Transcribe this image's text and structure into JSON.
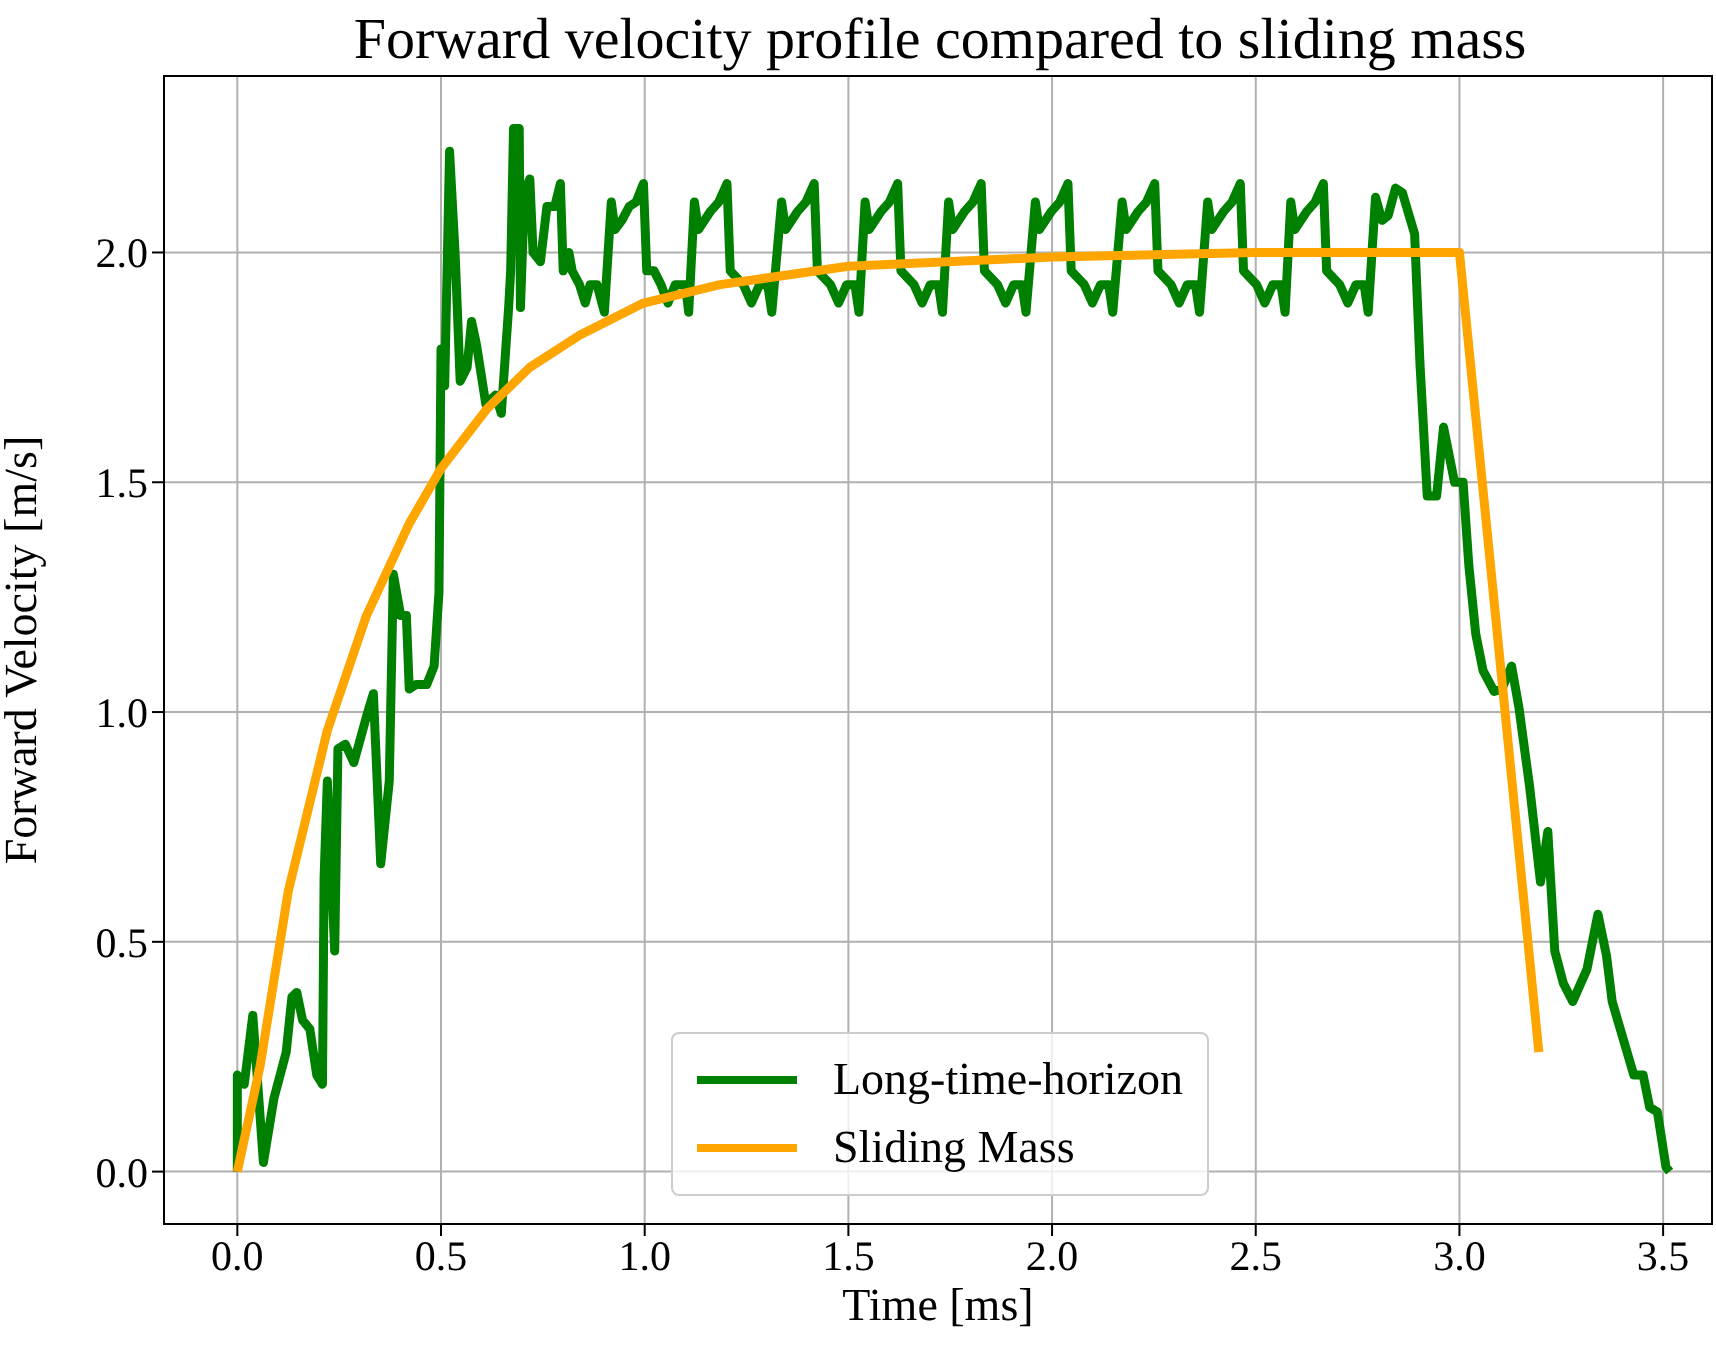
{
  "chart_data": {
    "type": "line",
    "title": "Forward velocity profile compared to sliding mass",
    "xlabel": "Time [ms]",
    "ylabel": "Forward Velocity [m/s]",
    "xlim": [
      -0.18,
      3.62
    ],
    "xticks": [
      {
        "value": 0,
        "label": "0.0"
      },
      {
        "value": 0.5,
        "label": "0.5"
      },
      {
        "value": 1,
        "label": "1.0"
      },
      {
        "value": 1.5,
        "label": "1.5"
      },
      {
        "value": 2,
        "label": "2.0"
      },
      {
        "value": 2.5,
        "label": "2.5"
      },
      {
        "value": 3,
        "label": "3.0"
      },
      {
        "value": 3.5,
        "label": "3.5"
      }
    ],
    "ylim": [
      -0.114,
      2.384
    ],
    "yticks": [
      {
        "value": 0,
        "label": "0.0"
      },
      {
        "value": 0.5,
        "label": "0.5"
      },
      {
        "value": 1,
        "label": "1.0"
      },
      {
        "value": 1.5,
        "label": "1.5"
      },
      {
        "value": 2,
        "label": "2.0"
      }
    ],
    "grid": true,
    "legend": "bottom",
    "marker": "none",
    "line_style": "solid",
    "series": [
      {
        "name": "Long-time-horizon",
        "color": "#008000",
        "x": [
          0,
          0,
          0.017,
          0.038,
          0.064,
          0.09,
          0.12,
          0.134,
          0.146,
          0.16,
          0.178,
          0.195,
          0.209,
          0.213,
          0.221,
          0.239,
          0.247,
          0.265,
          0.286,
          0.317,
          0.334,
          0.352,
          0.373,
          0.383,
          0.401,
          0.415,
          0.422,
          0.439,
          0.465,
          0.483,
          0.495,
          0.5,
          0.509,
          0.521,
          0.535,
          0.547,
          0.564,
          0.575,
          0.587,
          0.61,
          0.634,
          0.648,
          0.666,
          0.671,
          0.678,
          0.692,
          0.695,
          0.705,
          0.718,
          0.726,
          0.744,
          0.76,
          0.779,
          0.793,
          0.8,
          0.814,
          0.822,
          0.84,
          0.854,
          0.866,
          0.883,
          0.901,
          0.918,
          0.927,
          0.944,
          0.962,
          0.979,
          0.997,
          1.005,
          1.023,
          1.04,
          1.057,
          1.075,
          1.1,
          1.108,
          1.122,
          1.132,
          1.162,
          1.182,
          1.202,
          1.21,
          1.242,
          1.262,
          1.282,
          1.302,
          1.312,
          1.336,
          1.346,
          1.376,
          1.396,
          1.416,
          1.424,
          1.456,
          1.476,
          1.496,
          1.516,
          1.526,
          1.541,
          1.551,
          1.581,
          1.601,
          1.621,
          1.629,
          1.661,
          1.681,
          1.701,
          1.721,
          1.731,
          1.746,
          1.756,
          1.786,
          1.806,
          1.826,
          1.834,
          1.866,
          1.886,
          1.906,
          1.926,
          1.936,
          1.959,
          1.969,
          1.999,
          2.019,
          2.039,
          2.047,
          2.079,
          2.099,
          2.119,
          2.139,
          2.149,
          2.172,
          2.182,
          2.212,
          2.232,
          2.252,
          2.26,
          2.292,
          2.312,
          2.332,
          2.352,
          2.362,
          2.382,
          2.392,
          2.422,
          2.442,
          2.462,
          2.47,
          2.502,
          2.522,
          2.542,
          2.562,
          2.572,
          2.586,
          2.596,
          2.626,
          2.646,
          2.666,
          2.674,
          2.706,
          2.726,
          2.746,
          2.766,
          2.776,
          2.794,
          2.81,
          2.825,
          2.843,
          2.86,
          2.89,
          2.903,
          2.921,
          2.944,
          2.961,
          2.988,
          3.009,
          3.023,
          3.04,
          3.058,
          3.085,
          3.104,
          3.128,
          3.146,
          3.172,
          3.199,
          3.217,
          3.234,
          3.255,
          3.278,
          3.313,
          3.34,
          3.361,
          3.375,
          3.428,
          3.451,
          3.467,
          3.486,
          3.507,
          3.516
        ],
        "values": [
          0,
          0.21,
          0.19,
          0.34,
          0.02,
          0.16,
          0.26,
          0.38,
          0.39,
          0.33,
          0.31,
          0.21,
          0.19,
          0.64,
          0.85,
          0.48,
          0.92,
          0.93,
          0.89,
          0.99,
          1.04,
          0.67,
          0.85,
          1.3,
          1.21,
          1.21,
          1.05,
          1.06,
          1.06,
          1.1,
          1.26,
          1.79,
          1.71,
          2.22,
          1.99,
          1.72,
          1.75,
          1.85,
          1.8,
          1.67,
          1.69,
          1.65,
          1.88,
          1.96,
          2.27,
          2.27,
          1.88,
          2.13,
          2.16,
          2,
          1.98,
          2.1,
          2.1,
          2.15,
          1.96,
          2,
          1.96,
          1.93,
          1.89,
          1.93,
          1.93,
          1.87,
          2.11,
          2.05,
          2.07,
          2.1,
          2.11,
          2.15,
          1.96,
          1.96,
          1.93,
          1.89,
          1.93,
          1.93,
          1.87,
          2.11,
          2.05,
          2.09,
          2.11,
          2.15,
          1.96,
          1.93,
          1.89,
          1.93,
          1.93,
          1.87,
          2.11,
          2.05,
          2.09,
          2.11,
          2.15,
          1.96,
          1.93,
          1.89,
          1.93,
          1.93,
          1.87,
          2.11,
          2.05,
          2.09,
          2.11,
          2.15,
          1.96,
          1.93,
          1.89,
          1.93,
          1.93,
          1.87,
          2.11,
          2.05,
          2.09,
          2.11,
          2.15,
          1.96,
          1.93,
          1.89,
          1.93,
          1.93,
          1.87,
          2.11,
          2.05,
          2.09,
          2.11,
          2.15,
          1.96,
          1.93,
          1.89,
          1.93,
          1.93,
          1.87,
          2.11,
          2.05,
          2.09,
          2.11,
          2.15,
          1.96,
          1.93,
          1.89,
          1.93,
          1.93,
          1.87,
          2.11,
          2.05,
          2.09,
          2.11,
          2.15,
          1.96,
          1.93,
          1.89,
          1.93,
          1.93,
          1.87,
          2.11,
          2.05,
          2.09,
          2.11,
          2.15,
          1.96,
          1.93,
          1.89,
          1.93,
          1.93,
          1.87,
          2.12,
          2.07,
          2.08,
          2.14,
          2.13,
          2.04,
          1.76,
          1.47,
          1.47,
          1.62,
          1.5,
          1.5,
          1.32,
          1.17,
          1.09,
          1.045,
          1.05,
          1.1,
          1.01,
          0.84,
          0.63,
          0.74,
          0.48,
          0.41,
          0.37,
          0.44,
          0.56,
          0.47,
          0.37,
          0.21,
          0.21,
          0.14,
          0.13,
          0.01,
          0
        ]
      },
      {
        "name": "Sliding Mass",
        "color": "#ffa500",
        "x": [
          0,
          0.056,
          0.125,
          0.221,
          0.317,
          0.422,
          0.5,
          0.613,
          0.718,
          0.84,
          0.997,
          1.185,
          1.5,
          2,
          2.5,
          3,
          3.195
        ],
        "values": [
          0,
          0.23,
          0.61,
          0.96,
          1.21,
          1.41,
          1.53,
          1.66,
          1.75,
          1.82,
          1.89,
          1.93,
          1.97,
          1.99,
          2,
          2,
          0.26
        ]
      }
    ]
  }
}
